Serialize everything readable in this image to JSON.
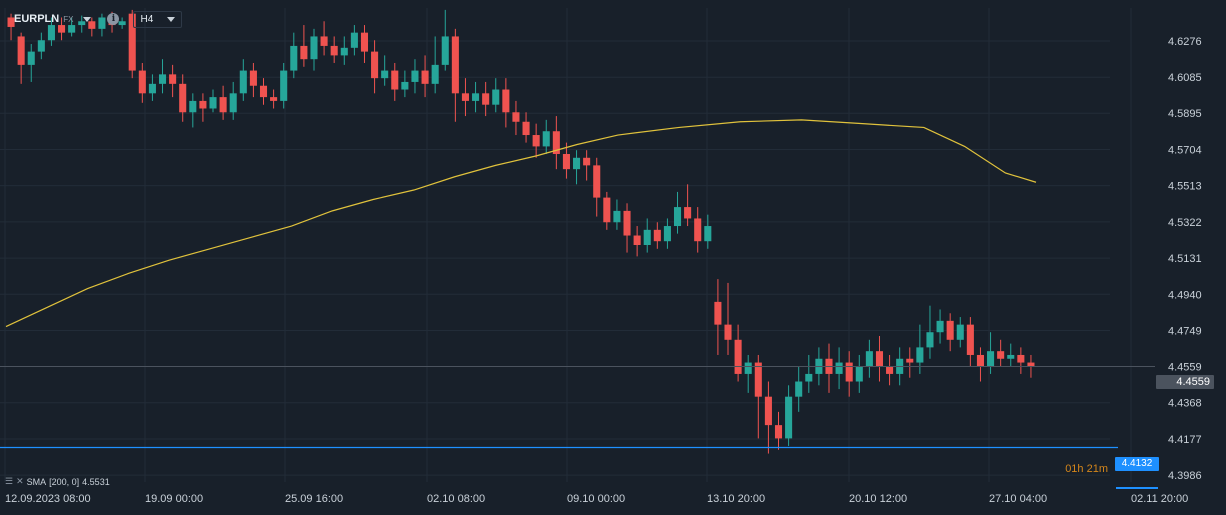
{
  "header": {
    "symbol": "EURPLN",
    "symbol_type": "FX",
    "info_icon": "info-icon",
    "timeframe": "H4"
  },
  "indicator": {
    "label": "SMA",
    "params": "[200, 0]",
    "value": "4.5531"
  },
  "colors": {
    "background": "#18202a",
    "grid": "#222c38",
    "up": "#26a69a",
    "down": "#ef5350",
    "sma": "#e0c23c",
    "hline": "#1e90ff"
  },
  "price_tags": {
    "current": "4.4559",
    "line": "4.4132",
    "line_orange_label": "01h 21m"
  },
  "chart_data": {
    "type": "candlestick",
    "symbol": "EURPLN",
    "timeframe": "H4",
    "y_ticks": [
      "4.6276",
      "4.6085",
      "4.5895",
      "4.5704",
      "4.5513",
      "4.5322",
      "4.5131",
      "4.4940",
      "4.4749",
      "4.4559",
      "4.4368",
      "4.4177",
      "4.3986"
    ],
    "x_ticks": [
      "12.09.2023 08:00",
      "19.09 00:00",
      "25.09 16:00",
      "02.10 08:00",
      "09.10 00:00",
      "13.10 20:00",
      "20.10 12:00",
      "27.10 04:00",
      "02.11 20:00"
    ],
    "ylim": [
      4.395,
      4.645
    ],
    "grid": true,
    "horizontal_line": 4.4132,
    "current_price": 4.4559,
    "sma": {
      "name": "SMA [200, 0]",
      "value": 4.5531,
      "points": [
        [
          0,
          4.477
        ],
        [
          20,
          4.487
        ],
        [
          40,
          4.497
        ],
        [
          60,
          4.505
        ],
        [
          80,
          4.512
        ],
        [
          100,
          4.518
        ],
        [
          120,
          4.524
        ],
        [
          140,
          4.53
        ],
        [
          160,
          4.538
        ],
        [
          180,
          4.544
        ],
        [
          200,
          4.549
        ],
        [
          220,
          4.556
        ],
        [
          240,
          4.562
        ],
        [
          260,
          4.567
        ],
        [
          280,
          4.573
        ],
        [
          300,
          4.578
        ],
        [
          330,
          4.582
        ],
        [
          360,
          4.585
        ],
        [
          390,
          4.586
        ],
        [
          420,
          4.584
        ],
        [
          450,
          4.582
        ],
        [
          470,
          4.572
        ],
        [
          490,
          4.558
        ],
        [
          505,
          4.5531
        ]
      ]
    },
    "candles": [
      [
        4.64,
        4.635,
        4.642,
        4.628
      ],
      [
        4.63,
        4.615,
        4.632,
        4.605
      ],
      [
        4.615,
        4.622,
        4.626,
        4.606
      ],
      [
        4.622,
        4.628,
        4.632,
        4.618
      ],
      [
        4.628,
        4.636,
        4.64,
        4.625
      ],
      [
        4.636,
        4.632,
        4.64,
        4.628
      ],
      [
        4.632,
        4.636,
        4.64,
        4.63
      ],
      [
        4.636,
        4.638,
        4.641,
        4.632
      ],
      [
        4.638,
        4.634,
        4.64,
        4.63
      ],
      [
        4.634,
        4.64,
        4.642,
        4.63
      ],
      [
        4.64,
        4.636,
        4.643,
        4.632
      ],
      [
        4.636,
        4.638,
        4.64,
        4.634
      ],
      [
        4.642,
        4.612,
        4.644,
        4.608
      ],
      [
        4.612,
        4.6,
        4.616,
        4.595
      ],
      [
        4.6,
        4.605,
        4.61,
        4.596
      ],
      [
        4.605,
        4.61,
        4.618,
        4.6
      ],
      [
        4.61,
        4.605,
        4.615,
        4.598
      ],
      [
        4.605,
        4.59,
        4.61,
        4.585
      ],
      [
        4.59,
        4.596,
        4.6,
        4.582
      ],
      [
        4.596,
        4.592,
        4.6,
        4.585
      ],
      [
        4.592,
        4.598,
        4.602,
        4.59
      ],
      [
        4.598,
        4.59,
        4.604,
        4.586
      ],
      [
        4.59,
        4.6,
        4.606,
        4.586
      ],
      [
        4.6,
        4.612,
        4.618,
        4.596
      ],
      [
        4.612,
        4.604,
        4.616,
        4.598
      ],
      [
        4.604,
        4.598,
        4.608,
        4.594
      ],
      [
        4.598,
        4.596,
        4.602,
        4.592
      ],
      [
        4.596,
        4.612,
        4.616,
        4.592
      ],
      [
        4.612,
        4.625,
        4.632,
        4.608
      ],
      [
        4.625,
        4.618,
        4.636,
        4.614
      ],
      [
        4.618,
        4.63,
        4.634,
        4.612
      ],
      [
        4.63,
        4.625,
        4.638,
        4.62
      ],
      [
        4.625,
        4.62,
        4.63,
        4.616
      ],
      [
        4.62,
        4.624,
        4.63,
        4.615
      ],
      [
        4.624,
        4.632,
        4.636,
        4.62
      ],
      [
        4.632,
        4.622,
        4.636,
        4.616
      ],
      [
        4.622,
        4.608,
        4.628,
        4.6
      ],
      [
        4.608,
        4.612,
        4.62,
        4.604
      ],
      [
        4.612,
        4.602,
        4.616,
        4.596
      ],
      [
        4.602,
        4.606,
        4.612,
        4.598
      ],
      [
        4.606,
        4.612,
        4.618,
        4.6
      ],
      [
        4.612,
        4.605,
        4.62,
        4.598
      ],
      [
        4.605,
        4.615,
        4.63,
        4.6
      ],
      [
        4.615,
        4.63,
        4.644,
        4.612
      ],
      [
        4.63,
        4.6,
        4.634,
        4.585
      ],
      [
        4.6,
        4.596,
        4.608,
        4.588
      ],
      [
        4.596,
        4.6,
        4.606,
        4.59
      ],
      [
        4.6,
        4.594,
        4.606,
        4.588
      ],
      [
        4.594,
        4.602,
        4.608,
        4.59
      ],
      [
        4.602,
        4.59,
        4.608,
        4.582
      ],
      [
        4.59,
        4.585,
        4.596,
        4.578
      ],
      [
        4.585,
        4.578,
        4.59,
        4.574
      ],
      [
        4.578,
        4.572,
        4.584,
        4.566
      ],
      [
        4.572,
        4.58,
        4.586,
        4.568
      ],
      [
        4.58,
        4.568,
        4.588,
        4.56
      ],
      [
        4.568,
        4.56,
        4.574,
        4.555
      ],
      [
        4.56,
        4.566,
        4.57,
        4.552
      ],
      [
        4.566,
        4.562,
        4.57,
        4.554
      ],
      [
        4.562,
        4.545,
        4.566,
        4.535
      ],
      [
        4.545,
        4.532,
        4.548,
        4.528
      ],
      [
        4.532,
        4.538,
        4.544,
        4.528
      ],
      [
        4.538,
        4.525,
        4.542,
        4.516
      ],
      [
        4.525,
        4.52,
        4.53,
        4.514
      ],
      [
        4.52,
        4.528,
        4.534,
        4.516
      ],
      [
        4.528,
        4.522,
        4.532,
        4.518
      ],
      [
        4.522,
        4.53,
        4.534,
        4.518
      ],
      [
        4.53,
        4.54,
        4.548,
        4.526
      ],
      [
        4.54,
        4.534,
        4.552,
        4.53
      ],
      [
        4.534,
        4.522,
        4.54,
        4.516
      ],
      [
        4.522,
        4.53,
        4.536,
        4.518
      ],
      [
        4.49,
        4.478,
        4.502,
        4.462
      ],
      [
        4.478,
        4.47,
        4.5,
        4.462
      ],
      [
        4.47,
        4.452,
        4.478,
        4.448
      ],
      [
        4.452,
        4.458,
        4.462,
        4.442
      ],
      [
        4.458,
        4.44,
        4.462,
        4.418
      ],
      [
        4.44,
        4.425,
        4.448,
        4.41
      ],
      [
        4.425,
        4.418,
        4.432,
        4.412
      ],
      [
        4.418,
        4.44,
        4.446,
        4.414
      ],
      [
        4.44,
        4.448,
        4.456,
        4.432
      ],
      [
        4.448,
        4.452,
        4.462,
        4.442
      ],
      [
        4.452,
        4.46,
        4.466,
        4.446
      ],
      [
        4.46,
        4.452,
        4.468,
        4.442
      ],
      [
        4.452,
        4.458,
        4.466,
        4.444
      ],
      [
        4.458,
        4.448,
        4.464,
        4.44
      ],
      [
        4.448,
        4.456,
        4.462,
        4.442
      ],
      [
        4.456,
        4.464,
        4.47,
        4.45
      ],
      [
        4.464,
        4.456,
        4.472,
        4.448
      ],
      [
        4.456,
        4.452,
        4.462,
        4.446
      ],
      [
        4.452,
        4.46,
        4.466,
        4.446
      ],
      [
        4.46,
        4.458,
        4.466,
        4.45
      ],
      [
        4.458,
        4.466,
        4.478,
        4.452
      ],
      [
        4.466,
        4.474,
        4.488,
        4.46
      ],
      [
        4.474,
        4.48,
        4.486,
        4.468
      ],
      [
        4.48,
        4.47,
        4.484,
        4.464
      ],
      [
        4.47,
        4.478,
        4.482,
        4.466
      ],
      [
        4.478,
        4.462,
        4.482,
        4.456
      ],
      [
        4.462,
        4.456,
        4.466,
        4.448
      ],
      [
        4.456,
        4.464,
        4.474,
        4.452
      ],
      [
        4.464,
        4.46,
        4.47,
        4.456
      ],
      [
        4.46,
        4.462,
        4.468,
        4.456
      ],
      [
        4.462,
        4.458,
        4.466,
        4.452
      ],
      [
        4.458,
        4.4559,
        4.462,
        4.45
      ]
    ]
  }
}
